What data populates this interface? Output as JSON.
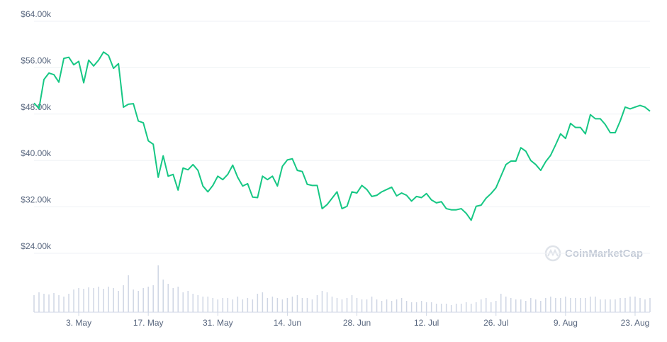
{
  "chart_data": {
    "type": "line",
    "watermark": "CoinMarketCap",
    "x": [
      "24. Apr",
      "25. Apr",
      "26. Apr",
      "27. Apr",
      "28. Apr",
      "29. Apr",
      "30. Apr",
      "1. May",
      "2. May",
      "3. May",
      "4. May",
      "5. May",
      "6. May",
      "7. May",
      "8. May",
      "9. May",
      "10. May",
      "11. May",
      "12. May",
      "13. May",
      "14. May",
      "15. May",
      "16. May",
      "17. May",
      "18. May",
      "19. May",
      "20. May",
      "21. May",
      "22. May",
      "23. May",
      "24. May",
      "25. May",
      "26. May",
      "27. May",
      "28. May",
      "29. May",
      "30. May",
      "31. May",
      "1. Jun",
      "2. Jun",
      "3. Jun",
      "4. Jun",
      "5. Jun",
      "6. Jun",
      "7. Jun",
      "8. Jun",
      "9. Jun",
      "10. Jun",
      "11. Jun",
      "12. Jun",
      "13. Jun",
      "14. Jun",
      "15. Jun",
      "16. Jun",
      "17. Jun",
      "18. Jun",
      "19. Jun",
      "20. Jun",
      "21. Jun",
      "22. Jun",
      "23. Jun",
      "24. Jun",
      "25. Jun",
      "26. Jun",
      "27. Jun",
      "28. Jun",
      "29. Jun",
      "30. Jun",
      "1. Jul",
      "2. Jul",
      "3. Jul",
      "4. Jul",
      "5. Jul",
      "6. Jul",
      "7. Jul",
      "8. Jul",
      "9. Jul",
      "10. Jul",
      "11. Jul",
      "12. Jul",
      "13. Jul",
      "14. Jul",
      "15. Jul",
      "16. Jul",
      "17. Jul",
      "18. Jul",
      "19. Jul",
      "20. Jul",
      "21. Jul",
      "22. Jul",
      "23. Jul",
      "24. Jul",
      "25. Jul",
      "26. Jul",
      "27. Jul",
      "28. Jul",
      "29. Jul",
      "30. Jul",
      "31. Jul",
      "1. Aug",
      "2. Aug",
      "3. Aug",
      "4. Aug",
      "5. Aug",
      "6. Aug",
      "7. Aug",
      "8. Aug",
      "9. Aug",
      "10. Aug",
      "11. Aug",
      "12. Aug",
      "13. Aug",
      "14. Aug",
      "15. Aug",
      "16. Aug",
      "17. Aug",
      "18. Aug",
      "19. Aug",
      "20. Aug",
      "21. Aug",
      "22. Aug",
      "23. Aug",
      "24. Aug",
      "25. Aug",
      "26. Aug"
    ],
    "values": [
      49.9,
      48.96,
      53.97,
      55.07,
      54.8,
      53.5,
      57.6,
      57.8,
      56.5,
      57.1,
      53.4,
      57.3,
      56.3,
      57.3,
      58.7,
      58.1,
      55.9,
      56.7,
      49.2,
      49.7,
      49.8,
      46.8,
      46.5,
      43.4,
      42.8,
      37.1,
      40.8,
      37.3,
      37.6,
      34.9,
      38.7,
      38.4,
      39.3,
      38.3,
      35.6,
      34.6,
      35.7,
      37.3,
      36.7,
      37.6,
      39.2,
      37.1,
      35.6,
      36.0,
      33.7,
      33.6,
      37.3,
      36.7,
      37.3,
      35.6,
      39.0,
      40.1,
      40.3,
      38.3,
      38.1,
      35.9,
      35.7,
      35.7,
      31.7,
      32.4,
      33.5,
      34.6,
      31.7,
      32.1,
      34.6,
      34.4,
      35.7,
      35.0,
      33.8,
      34.0,
      34.6,
      35.0,
      35.4,
      33.9,
      34.4,
      34.0,
      33.0,
      33.8,
      33.6,
      34.3,
      33.2,
      32.7,
      32.9,
      31.7,
      31.5,
      31.5,
      31.7,
      30.9,
      29.7,
      32.1,
      32.3,
      33.5,
      34.3,
      35.3,
      37.3,
      39.3,
      39.9,
      39.9,
      42.2,
      41.6,
      40.0,
      39.3,
      38.3,
      39.8,
      40.9,
      42.7,
      44.6,
      43.8,
      46.4,
      45.7,
      45.7,
      44.6,
      47.9,
      47.2,
      47.2,
      46.2,
      44.8,
      44.8,
      46.8,
      49.2,
      48.9,
      49.2,
      49.5,
      49.2,
      48.5
    ],
    "color": "#16c784",
    "volume": [
      24,
      28,
      26,
      25,
      27,
      24,
      22,
      26,
      32,
      34,
      33,
      35,
      34,
      36,
      33,
      36,
      34,
      30,
      38,
      52,
      32,
      30,
      34,
      36,
      38,
      66,
      46,
      40,
      34,
      36,
      28,
      30,
      26,
      24,
      22,
      22,
      20,
      18,
      20,
      20,
      18,
      22,
      18,
      20,
      18,
      26,
      28,
      20,
      22,
      20,
      18,
      20,
      22,
      24,
      20,
      20,
      18,
      24,
      30,
      28,
      22,
      20,
      18,
      20,
      24,
      20,
      18,
      18,
      22,
      18,
      16,
      18,
      16,
      18,
      20,
      16,
      14,
      14,
      16,
      14,
      14,
      12,
      12,
      12,
      10,
      12,
      12,
      14,
      12,
      14,
      18,
      20,
      14,
      16,
      26,
      22,
      20,
      18,
      18,
      16,
      20,
      18,
      16,
      20,
      22,
      20,
      20,
      22,
      20,
      20,
      20,
      20,
      22,
      22,
      18,
      18,
      18,
      18,
      20,
      20,
      22,
      22,
      20,
      18,
      20
    ],
    "volume_color": "#cfd6e4",
    "ylim": [
      24,
      64
    ],
    "yticks": [
      {
        "value": 24,
        "label": "$24.00k"
      },
      {
        "value": 32,
        "label": "$32.00k"
      },
      {
        "value": 40,
        "label": "$40.00k"
      },
      {
        "value": 48,
        "label": "$48.00k"
      },
      {
        "value": 56,
        "label": "$56.00k"
      },
      {
        "value": 64,
        "label": "$64.00k"
      }
    ],
    "xticks": [
      "3. May",
      "17. May",
      "31. May",
      "14. Jun",
      "28. Jun",
      "12. Jul",
      "26. Jul",
      "9. Aug",
      "23. Aug"
    ],
    "grid": true
  }
}
